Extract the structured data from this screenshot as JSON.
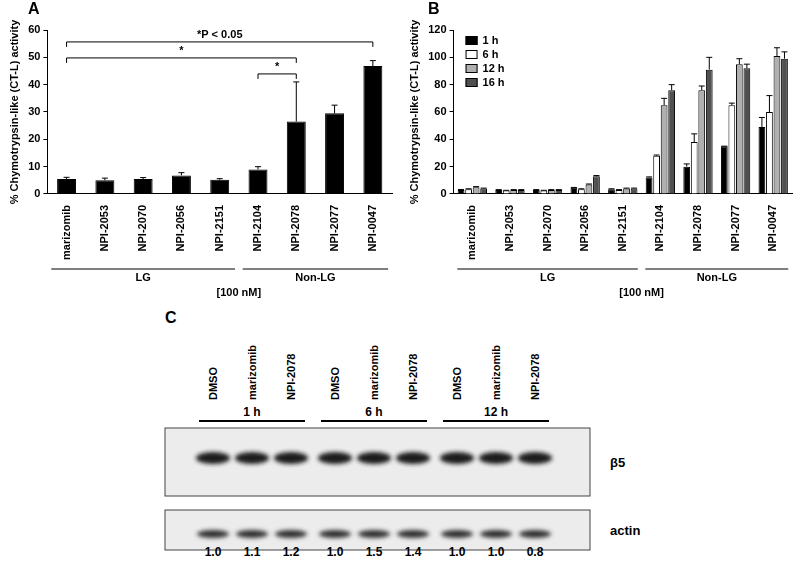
{
  "chart_data": [
    {
      "type": "bar",
      "title": "A",
      "y_label": "% Chymotrypsin-like (CT-L) activity",
      "categories": [
        "marizomib",
        "NPI-2053",
        "NPI-2070",
        "NPI-2056",
        "NPI-2151",
        "NPI-2104",
        "NPI-2078",
        "NPI-2077",
        "NPI-0047"
      ],
      "values": [
        5.5,
        5.0,
        5.5,
        6.8,
        5.2,
        9.0,
        26.5,
        29.5,
        46.8
      ],
      "errors": [
        0.6,
        0.8,
        0.5,
        1.0,
        0.4,
        1.0,
        14.5,
        3.0,
        2.0
      ],
      "color": "#000000",
      "ylim": [
        0,
        60
      ],
      "yticks": [
        0,
        10,
        20,
        30,
        40,
        50,
        60
      ],
      "grid": false,
      "groups": [
        {
          "label": "LG",
          "from": "marizomib",
          "to": "NPI-2151"
        },
        {
          "label": "Non-LG",
          "from": "NPI-2104",
          "to": "NPI-0047"
        }
      ],
      "group_note": "[100 nM]",
      "significance": [
        {
          "label": "*P < 0.05",
          "from": "marizomib",
          "to": "NPI-0047"
        },
        {
          "label": "*",
          "from": "marizomib",
          "to": "NPI-2078"
        },
        {
          "label": "*",
          "from": "NPI-2104",
          "to": "NPI-2078"
        }
      ]
    },
    {
      "type": "bar",
      "title": "B",
      "y_label": "% Chymotrypsin-like (CT-L) activity",
      "categories": [
        "marizomib",
        "NPI-2053",
        "NPI-2070",
        "NPI-2056",
        "NPI-2151",
        "NPI-2104",
        "NPI-2078",
        "NPI-2077",
        "NPI-0047"
      ],
      "series": [
        {
          "name": "1 h",
          "color": "#000000",
          "values": [
            3,
            3,
            3,
            4.5,
            3.5,
            12,
            20,
            35,
            49
          ],
          "errors": [
            0.3,
            0.2,
            0.2,
            0.3,
            0.3,
            0.5,
            2,
            0,
            7
          ]
        },
        {
          "name": "6 h",
          "color": "#ffffff",
          "values": [
            3.5,
            2.5,
            2.5,
            3.5,
            3,
            28,
            38,
            65,
            60
          ],
          "errors": [
            0.3,
            0.2,
            0.2,
            0.3,
            0.2,
            0.5,
            6,
            1.5,
            12
          ]
        },
        {
          "name": "12 h",
          "color": "#b0b0b0",
          "values": [
            5,
            3,
            3,
            7,
            4,
            65,
            76,
            95,
            101
          ],
          "errors": [
            0.4,
            0.2,
            0.2,
            0.3,
            0.3,
            5,
            3,
            4,
            6
          ]
        },
        {
          "name": "16 h",
          "color": "#505050",
          "values": [
            4,
            3,
            3,
            13,
            4,
            76,
            91,
            92,
            99
          ],
          "errors": [
            0.3,
            0.2,
            0.2,
            0.5,
            0.3,
            4,
            9,
            3,
            5
          ]
        }
      ],
      "ylim": [
        0,
        120
      ],
      "yticks": [
        0,
        20,
        40,
        60,
        80,
        100,
        120
      ],
      "grid": false,
      "legend": "upper left",
      "groups": [
        {
          "label": "LG",
          "from": "marizomib",
          "to": "NPI-2151"
        },
        {
          "label": "Non-LG",
          "from": "NPI-2104",
          "to": "NPI-0047"
        }
      ],
      "group_note": "[100 nM]"
    }
  ],
  "blot": {
    "title": "C",
    "times": [
      "1 h",
      "6 h",
      "12 h"
    ],
    "lanes": [
      "DMSO",
      "marizomib",
      "NPI-2078"
    ],
    "bands": [
      "β5",
      "actin"
    ],
    "ratios": [
      "1.0",
      "1.1",
      "1.2",
      "1.0",
      "1.5",
      "1.4",
      "1.0",
      "1.0",
      "0.8"
    ]
  }
}
